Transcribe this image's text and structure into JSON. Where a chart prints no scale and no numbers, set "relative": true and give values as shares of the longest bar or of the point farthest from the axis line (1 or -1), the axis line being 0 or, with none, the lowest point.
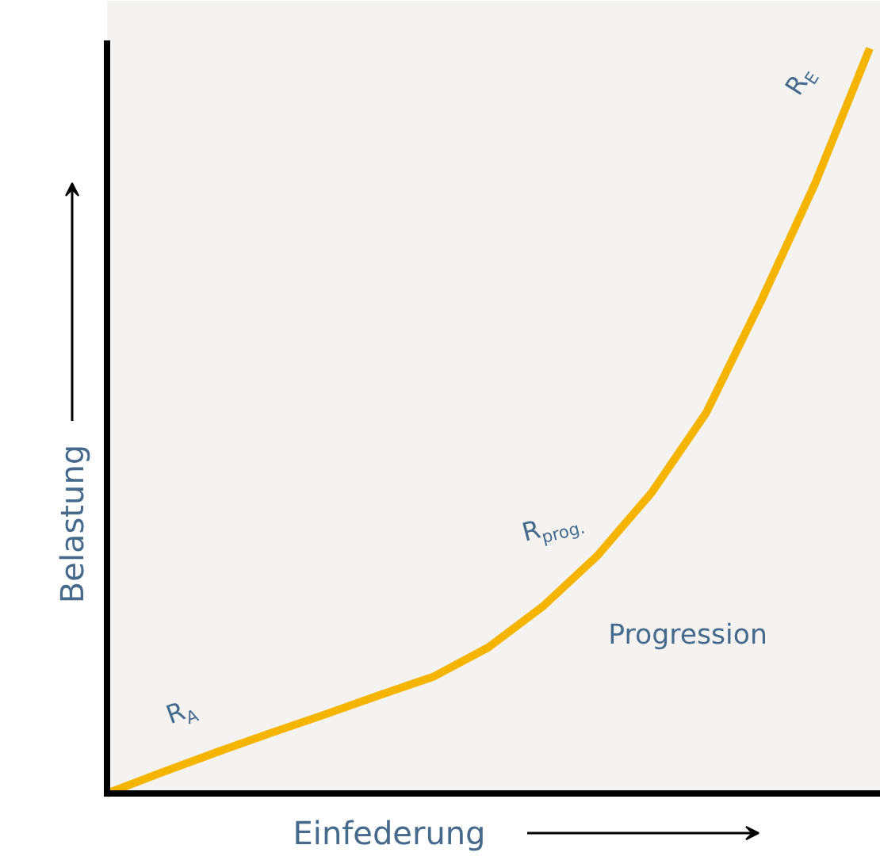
{
  "chart_data": {
    "type": "line",
    "relative": true,
    "xlabel": "Einfederung",
    "ylabel": "Belastung",
    "categories": [
      null,
      null,
      null,
      null,
      null,
      null,
      null,
      null,
      null,
      null,
      null,
      null,
      null,
      null,
      null
    ],
    "series": [
      {
        "color": "#f5b400",
        "values": [
          0,
          0.028,
          0.055,
          0.081,
          0.106,
          0.132,
          0.157,
          0.196,
          0.251,
          0.319,
          0.404,
          0.511,
          0.66,
          0.819,
          1
        ]
      }
    ],
    "annotations": [
      "R$_{A}$",
      "R$_{prog.}$",
      "R$_{E}$",
      "Progression"
    ],
    "marker": "none",
    "line_style": "solid"
  }
}
